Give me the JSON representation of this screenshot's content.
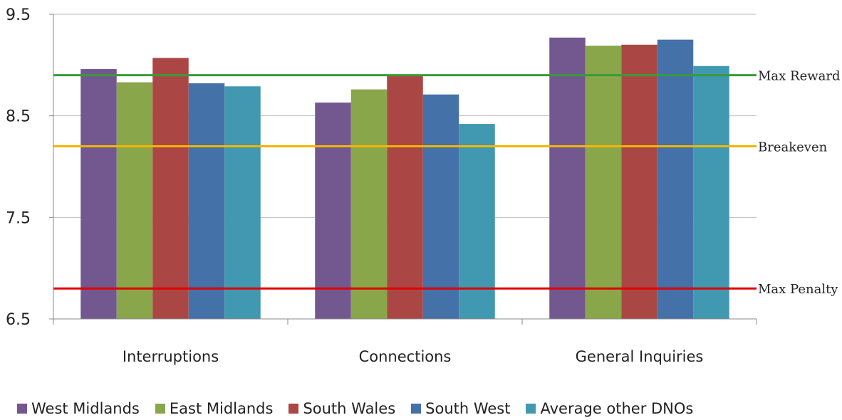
{
  "chart_data": {
    "type": "bar",
    "categories": [
      "Interruptions",
      "Connections",
      "General Inquiries"
    ],
    "series": [
      {
        "name": "West Midlands",
        "color": "#72588F",
        "values": [
          8.96,
          8.63,
          9.27
        ]
      },
      {
        "name": "East Midlands",
        "color": "#8AA64B",
        "values": [
          8.83,
          8.76,
          9.19
        ]
      },
      {
        "name": "South Wales",
        "color": "#AA4744",
        "values": [
          9.07,
          8.89,
          9.2
        ]
      },
      {
        "name": "South West",
        "color": "#4471A8",
        "values": [
          8.82,
          8.71,
          9.25
        ]
      },
      {
        "name": "Average other DNOs",
        "color": "#4099B0",
        "values": [
          8.79,
          8.42,
          8.99
        ]
      }
    ],
    "reference_lines": [
      {
        "label": "Max Reward",
        "value": 8.9,
        "color": "#3A9A3A"
      },
      {
        "label": "Breakeven",
        "value": 8.2,
        "color": "#F4B400"
      },
      {
        "label": "Max Penalty",
        "value": 6.8,
        "color": "#E00000"
      }
    ],
    "ylim": [
      6.5,
      9.5
    ],
    "yticks": [
      "6.5",
      "7.5",
      "8.5",
      "9.5"
    ],
    "grid": true,
    "legend_position": "bottom",
    "title": "",
    "xlabel": "",
    "ylabel": ""
  }
}
